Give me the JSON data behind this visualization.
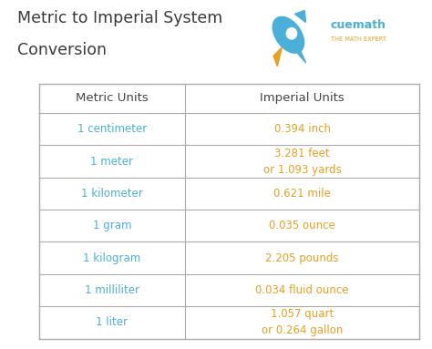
{
  "title_line1": "Metric to Imperial System",
  "title_line2": "Conversion",
  "title_color": "#3a3a3a",
  "title_fontsize": 12.5,
  "bg_color": "#ffffff",
  "header_bg": "#faf5e8",
  "row_bg_light": "#e8f4fb",
  "row_bg_white": "#ffffff",
  "border_color": "#aaaaaa",
  "metric_color": "#4ab0d9",
  "imperial_color": "#e8a020",
  "header_text_color": "#444444",
  "cuemath_color": "#4ab0d9",
  "math_expert_color": "#e8a020",
  "metric_units": [
    "1 centimeter",
    "1 meter",
    "1 kilometer",
    "1 gram",
    "1 kilogram",
    "1 milliliter",
    "1 liter"
  ],
  "imperial_units": [
    "0.394 inch",
    "3.281 feet\nor 1.093 yards",
    "0.621 mile",
    "0.035 ounce",
    "2.205 pounds",
    "0.034 fluid ounce",
    "1.057 quart\nor 0.264 gallon"
  ],
  "col_header_metric": "Metric Units",
  "col_header_imperial": "Imperial Units",
  "cell_fontsize": 8.5,
  "header_fontsize": 9.5
}
